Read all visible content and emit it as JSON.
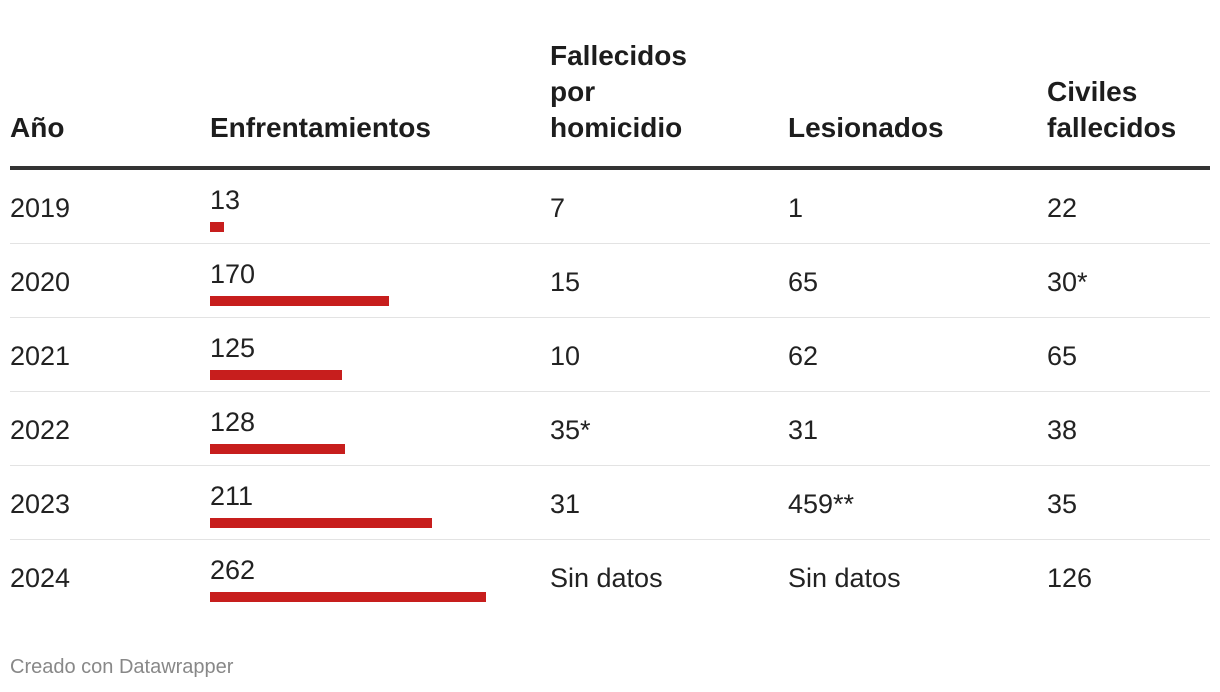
{
  "chart_data": {
    "type": "table",
    "columns": [
      "Año",
      "Enfrentamientos",
      "Fallecidos por homicidio",
      "Lesionados",
      "Civiles fallecidos"
    ],
    "header_lines": [
      [
        "Año"
      ],
      [
        "Enfrentamientos"
      ],
      [
        "Fallecidos",
        "por",
        "homicidio"
      ],
      [
        "Lesionados"
      ],
      [
        "Civiles",
        "fallecidos"
      ]
    ],
    "bar_max": 262,
    "bar_color": "#c71e1d",
    "rows": [
      {
        "year": "2019",
        "enfrentamientos": 13,
        "fallecidos": "7",
        "lesionados": "1",
        "civiles": "22"
      },
      {
        "year": "2020",
        "enfrentamientos": 170,
        "fallecidos": "15",
        "lesionados": "65",
        "civiles": "30*"
      },
      {
        "year": "2021",
        "enfrentamientos": 125,
        "fallecidos": "10",
        "lesionados": "62",
        "civiles": "65"
      },
      {
        "year": "2022",
        "enfrentamientos": 128,
        "fallecidos": "35*",
        "lesionados": "31",
        "civiles": "38"
      },
      {
        "year": "2023",
        "enfrentamientos": 211,
        "fallecidos": "31",
        "lesionados": "459**",
        "civiles": "35"
      },
      {
        "year": "2024",
        "enfrentamientos": 262,
        "fallecidos": "Sin datos",
        "lesionados": "Sin datos",
        "civiles": "126"
      }
    ]
  },
  "footer": {
    "credit": "Creado con Datawrapper"
  }
}
